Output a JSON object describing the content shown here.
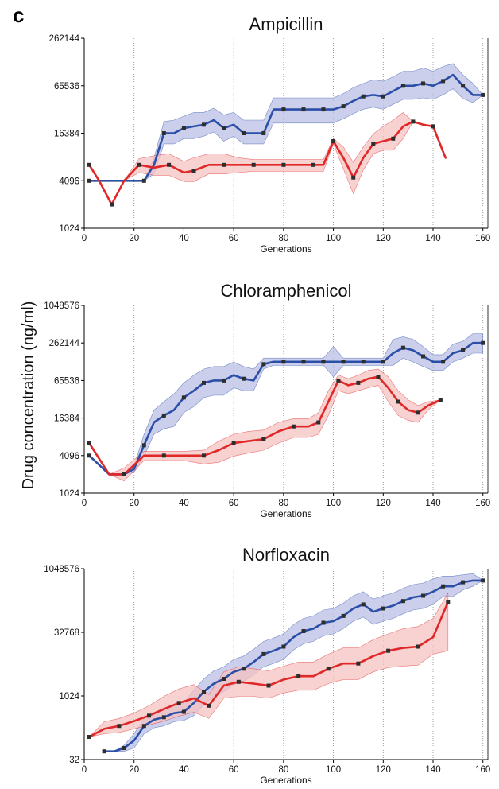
{
  "panel_label": "c",
  "ylabel": "Drug concentration (ng/ml)",
  "colors": {
    "blue": "#2b4fa6",
    "blue_band": "#b9bfe6",
    "red": "#e02828",
    "red_band": "#f6c2c2",
    "marker": "#2e2e2e"
  },
  "chart_data": [
    {
      "type": "line",
      "title": "Ampicillin",
      "xlabel": "Generations",
      "xlim": [
        0,
        162
      ],
      "ylim": [
        1024,
        262144
      ],
      "yscale": "log2",
      "xticks": [
        "0",
        "20",
        "40",
        "60",
        "80",
        "100",
        "120",
        "140",
        "160"
      ],
      "yticks": [
        "1024",
        "4096",
        "16384",
        "65536",
        "262144"
      ],
      "yticks_values": [
        1024,
        4096,
        16384,
        65536,
        262144
      ],
      "series": [
        {
          "color": "blue",
          "x": [
            2,
            12,
            24,
            28,
            32,
            36,
            40,
            44,
            48,
            52,
            56,
            60,
            64,
            68,
            72,
            76,
            80,
            84,
            88,
            92,
            96,
            100,
            104,
            108,
            112,
            116,
            120,
            124,
            128,
            132,
            136,
            140,
            144,
            148,
            152,
            156,
            160
          ],
          "y": [
            4096,
            4096,
            4096,
            6500,
            16384,
            16384,
            19000,
            20000,
            21000,
            24000,
            19000,
            21000,
            16384,
            16384,
            16384,
            32768,
            32768,
            32768,
            32768,
            32768,
            32768,
            32768,
            36000,
            42000,
            48000,
            50000,
            48000,
            56000,
            65536,
            65536,
            70000,
            65536,
            75000,
            90000,
            65536,
            50000,
            50000
          ],
          "band_upper": [
            4096,
            4096,
            4096,
            8000,
            23000,
            24000,
            27000,
            30000,
            30000,
            34000,
            28000,
            30000,
            24000,
            24000,
            24000,
            46000,
            46000,
            46000,
            46000,
            46000,
            46000,
            46000,
            52000,
            62000,
            70000,
            78000,
            75000,
            85000,
            100000,
            100000,
            110000,
            100000,
            115000,
            125000,
            90000,
            70000,
            50000
          ],
          "band_lower": [
            4096,
            4096,
            4096,
            5000,
            12000,
            12000,
            14000,
            14000,
            15000,
            17000,
            13000,
            15000,
            12000,
            12000,
            12000,
            22000,
            22000,
            22000,
            22000,
            22000,
            22000,
            22000,
            25000,
            29000,
            33000,
            35000,
            33000,
            38000,
            44000,
            44000,
            46000,
            44000,
            50000,
            60000,
            45000,
            40000,
            50000
          ]
        },
        {
          "color": "red",
          "x": [
            2,
            6,
            11,
            16,
            22,
            28,
            34,
            40,
            44,
            50,
            56,
            62,
            68,
            74,
            80,
            86,
            92,
            96,
            100,
            104,
            108,
            112,
            116,
            120,
            124,
            128,
            132,
            136,
            140,
            145
          ],
          "y": [
            6500,
            4096,
            2048,
            4096,
            6500,
            6000,
            6500,
            5200,
            5500,
            6500,
            6500,
            6500,
            6500,
            6500,
            6500,
            6500,
            6500,
            6500,
            13000,
            8000,
            4500,
            8000,
            12000,
            13000,
            14000,
            20000,
            23000,
            21000,
            20000,
            8000
          ],
          "band_upper": [
            6500,
            4096,
            2048,
            4096,
            7800,
            8500,
            9000,
            7200,
            8000,
            9000,
            9000,
            8000,
            7600,
            7600,
            7600,
            7600,
            7600,
            7600,
            14000,
            11000,
            7000,
            11000,
            16000,
            20000,
            24000,
            30000,
            23000,
            21000,
            20000,
            8000
          ],
          "band_lower": [
            6500,
            4096,
            2048,
            4096,
            5200,
            4800,
            4800,
            4000,
            4000,
            5000,
            5000,
            5200,
            5400,
            5400,
            5400,
            5400,
            5400,
            5400,
            12000,
            5800,
            2800,
            5600,
            9000,
            10000,
            10000,
            14000,
            23000,
            21000,
            20000,
            8000
          ]
        }
      ]
    },
    {
      "type": "line",
      "title": "Chloramphenicol",
      "xlabel": "Generations",
      "xlim": [
        0,
        162
      ],
      "ylim": [
        1024,
        1048576
      ],
      "yscale": "log2",
      "xticks": [
        "0",
        "20",
        "40",
        "60",
        "80",
        "100",
        "120",
        "140",
        "160"
      ],
      "yticks": [
        "1024",
        "4096",
        "16384",
        "65536",
        "262144",
        "1048576"
      ],
      "yticks_values": [
        1024,
        4096,
        16384,
        65536,
        262144,
        1048576
      ],
      "series": [
        {
          "color": "blue",
          "x": [
            2,
            10,
            16,
            20,
            24,
            28,
            32,
            36,
            40,
            44,
            48,
            52,
            56,
            60,
            64,
            68,
            72,
            76,
            80,
            84,
            88,
            92,
            96,
            100,
            104,
            108,
            112,
            116,
            120,
            124,
            128,
            132,
            136,
            140,
            144,
            148,
            152,
            156,
            160
          ],
          "y": [
            4096,
            2048,
            2048,
            2500,
            6000,
            14000,
            18000,
            22000,
            35000,
            45000,
            60000,
            65536,
            65536,
            80000,
            70000,
            65536,
            120000,
            131072,
            131072,
            131072,
            131072,
            131072,
            131072,
            131072,
            131072,
            131072,
            131072,
            131072,
            131072,
            180000,
            220000,
            200000,
            160000,
            131072,
            131072,
            180000,
            200000,
            262144,
            262144
          ],
          "band_upper": [
            4096,
            2048,
            2048,
            2800,
            9000,
            22000,
            30000,
            40000,
            60000,
            80000,
            100000,
            110000,
            110000,
            130000,
            110000,
            100000,
            150000,
            150000,
            150000,
            150000,
            150000,
            150000,
            150000,
            230000,
            150000,
            150000,
            150000,
            150000,
            150000,
            300000,
            330000,
            300000,
            230000,
            170000,
            170000,
            250000,
            280000,
            370000,
            370000
          ],
          "band_lower": [
            4096,
            2048,
            2048,
            2200,
            4000,
            9000,
            11000,
            12000,
            20000,
            25000,
            35000,
            38000,
            38000,
            50000,
            45000,
            45000,
            100000,
            115000,
            115000,
            115000,
            115000,
            115000,
            115000,
            75000,
            115000,
            115000,
            115000,
            115000,
            115000,
            115000,
            150000,
            130000,
            110000,
            95000,
            95000,
            130000,
            150000,
            180000,
            180000
          ]
        },
        {
          "color": "red",
          "x": [
            2,
            10,
            16,
            24,
            32,
            40,
            48,
            54,
            60,
            66,
            72,
            78,
            84,
            90,
            94,
            98,
            102,
            106,
            110,
            114,
            118,
            122,
            126,
            130,
            134,
            138,
            143
          ],
          "y": [
            6500,
            2048,
            2048,
            4096,
            4096,
            4096,
            4096,
            5000,
            6500,
            7000,
            7500,
            10000,
            12000,
            12000,
            14000,
            30000,
            65536,
            55000,
            60000,
            70000,
            75000,
            50000,
            30000,
            22000,
            20000,
            26000,
            32000
          ],
          "band_upper": [
            6500,
            2048,
            2600,
            4800,
            4800,
            4800,
            5000,
            7000,
            9000,
            10000,
            10500,
            14000,
            16000,
            16000,
            20000,
            45000,
            80000,
            70000,
            80000,
            95000,
            100000,
            75000,
            45000,
            32000,
            26000,
            30000,
            32000
          ],
          "band_lower": [
            6500,
            2048,
            1600,
            3400,
            3400,
            3400,
            3000,
            3200,
            4000,
            4500,
            5000,
            6500,
            8000,
            8000,
            9000,
            18000,
            45000,
            40000,
            45000,
            50000,
            55000,
            30000,
            18000,
            15000,
            14000,
            22000,
            32000
          ]
        }
      ]
    },
    {
      "type": "line",
      "title": "Norfloxacin",
      "xlabel": "Generations",
      "xlim": [
        0,
        162
      ],
      "ylim": [
        32,
        1048576
      ],
      "yscale": "log2",
      "xticks": [
        "0",
        "20",
        "40",
        "60",
        "80",
        "100",
        "120",
        "140",
        "160"
      ],
      "yticks": [
        "32",
        "1024",
        "32768",
        "1048576"
      ],
      "yticks_values": [
        32,
        1024,
        32768,
        1048576
      ],
      "series": [
        {
          "color": "blue",
          "x": [
            8,
            12,
            16,
            20,
            24,
            28,
            32,
            36,
            40,
            44,
            48,
            52,
            56,
            60,
            64,
            68,
            72,
            76,
            80,
            84,
            88,
            92,
            96,
            100,
            104,
            108,
            112,
            116,
            120,
            124,
            128,
            132,
            136,
            140,
            144,
            148,
            152,
            156,
            160
          ],
          "y": [
            50,
            50,
            60,
            90,
            200,
            280,
            320,
            400,
            430,
            700,
            1300,
            2000,
            2600,
            3800,
            4500,
            6500,
            10000,
            12000,
            15000,
            25000,
            35000,
            40000,
            55000,
            60000,
            80000,
            120000,
            150000,
            100000,
            120000,
            140000,
            180000,
            220000,
            240000,
            300000,
            400000,
            400000,
            500000,
            550000,
            550000
          ],
          "band_upper": [
            50,
            50,
            70,
            130,
            300,
            420,
            500,
            650,
            700,
            1400,
            2600,
            4000,
            5000,
            7500,
            9000,
            13000,
            20000,
            24000,
            30000,
            50000,
            70000,
            80000,
            110000,
            120000,
            160000,
            240000,
            300000,
            200000,
            240000,
            280000,
            360000,
            440000,
            480000,
            600000,
            700000,
            700000,
            750000,
            800000,
            550000
          ],
          "band_lower": [
            50,
            50,
            50,
            60,
            130,
            180,
            200,
            250,
            270,
            350,
            650,
            1000,
            1300,
            1900,
            2250,
            3250,
            5000,
            6000,
            7500,
            12500,
            17500,
            20000,
            27000,
            30000,
            40000,
            60000,
            75000,
            50000,
            60000,
            70000,
            90000,
            110000,
            120000,
            150000,
            230000,
            230000,
            330000,
            400000,
            550000
          ]
        },
        {
          "color": "red",
          "x": [
            2,
            8,
            14,
            20,
            26,
            32,
            38,
            44,
            50,
            56,
            62,
            68,
            74,
            80,
            86,
            92,
            98,
            104,
            110,
            116,
            122,
            128,
            134,
            140,
            146
          ],
          "y": [
            110,
            170,
            200,
            260,
            350,
            500,
            700,
            900,
            600,
            1800,
            2200,
            2000,
            1800,
            2500,
            3000,
            3000,
            4500,
            6000,
            6000,
            9000,
            12000,
            14000,
            15000,
            25000,
            170000
          ],
          "band_upper": [
            110,
            250,
            300,
            400,
            600,
            1000,
            1500,
            1900,
            1100,
            3800,
            5000,
            4500,
            4000,
            5200,
            6500,
            6500,
            10000,
            14000,
            14000,
            22000,
            30000,
            40000,
            45000,
            70000,
            280000
          ],
          "band_lower": [
            110,
            130,
            140,
            170,
            210,
            260,
            340,
            420,
            300,
            900,
            1000,
            1000,
            900,
            1200,
            1400,
            1400,
            2000,
            2500,
            2500,
            3800,
            4800,
            5200,
            5500,
            10000,
            12000
          ]
        }
      ]
    }
  ]
}
